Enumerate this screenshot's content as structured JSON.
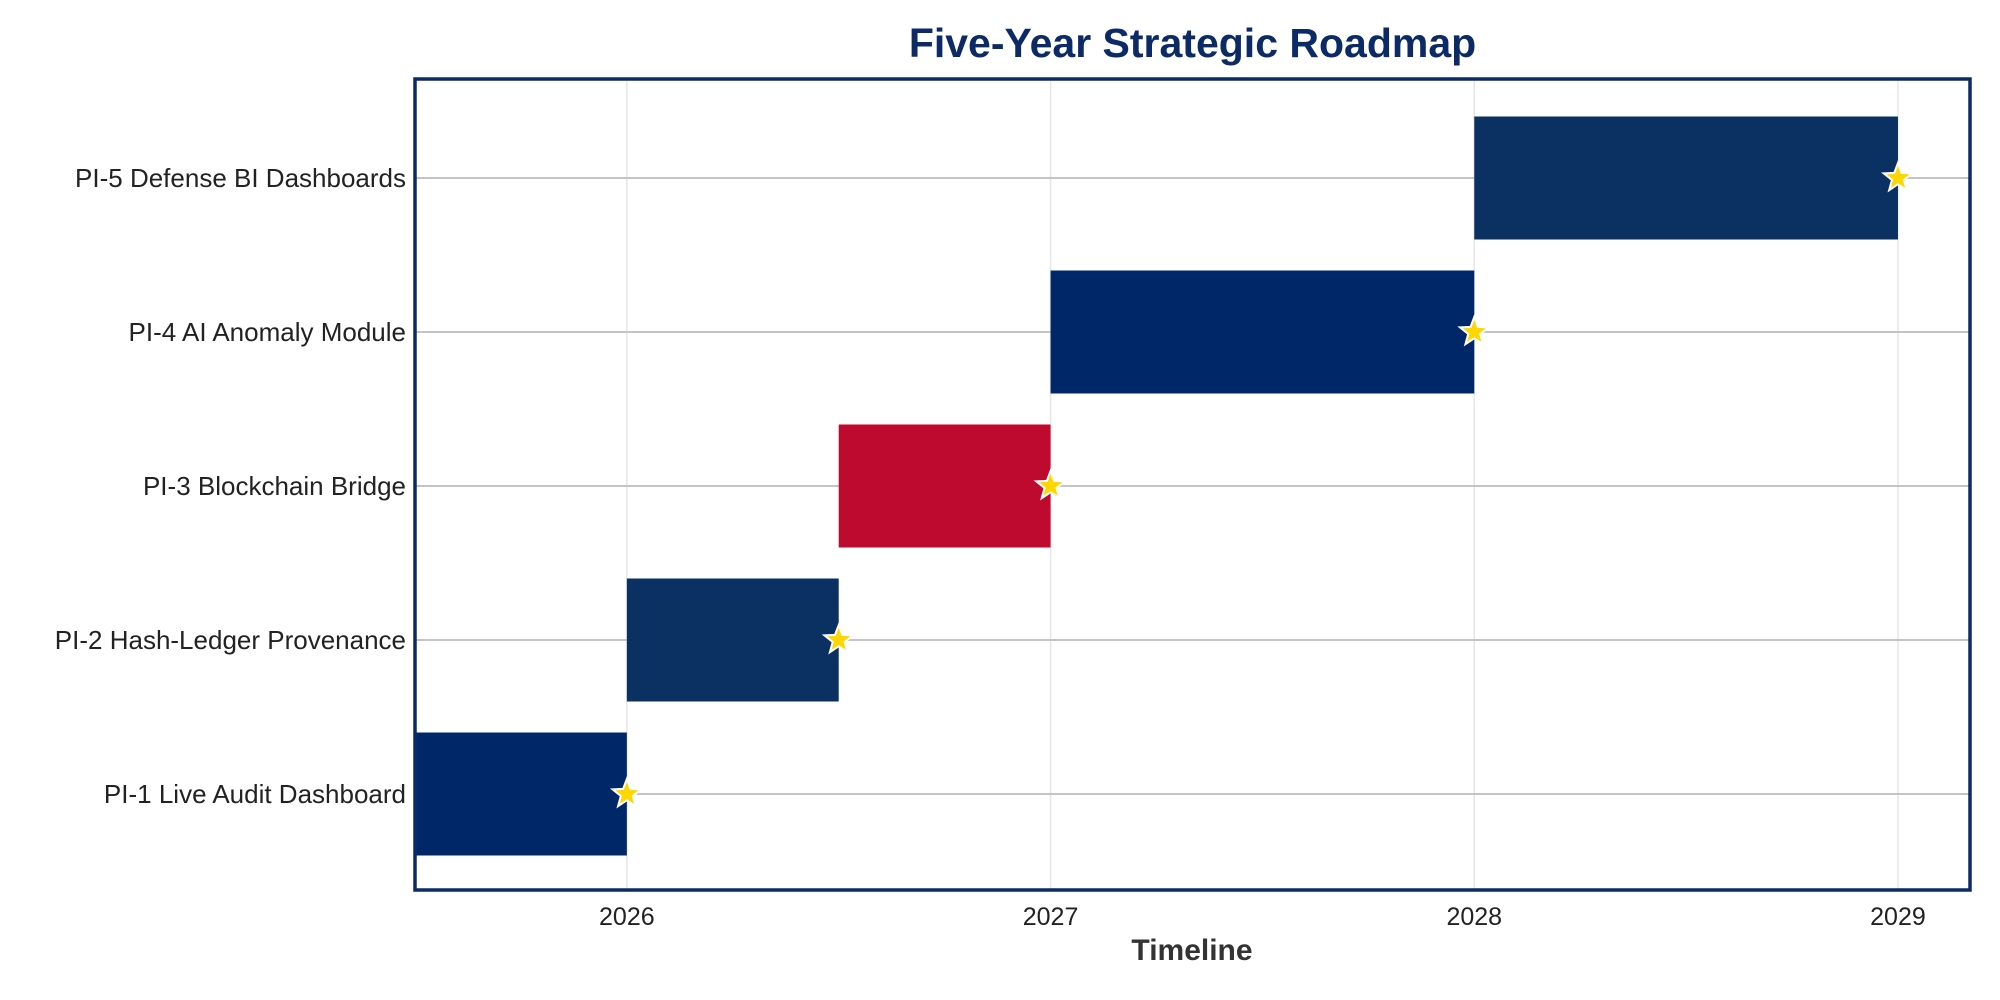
{
  "chart_data": {
    "type": "gantt",
    "title": "Five-Year Strategic Roadmap",
    "xlabel": "Timeline",
    "ylabel": "",
    "x_unit": "year",
    "xlim": [
      2025.5,
      2029.17
    ],
    "x_ticks": [
      "2026",
      "2027",
      "2028",
      "2029"
    ],
    "x_tick_values": [
      2026,
      2027,
      2028,
      2029
    ],
    "grid": true,
    "tasks": [
      {
        "label": "PI-1 Live Audit Dashboard",
        "start": 2025.5,
        "end": 2026.0,
        "milestone": 2026.0,
        "color": "#002868"
      },
      {
        "label": "PI-2 Hash-Ledger Provenance",
        "start": 2026.0,
        "end": 2026.5,
        "milestone": 2026.5,
        "color": "#0b3062"
      },
      {
        "label": "PI-3 Blockchain Bridge",
        "start": 2026.5,
        "end": 2027.0,
        "milestone": 2027.0,
        "color": "#bf0a30"
      },
      {
        "label": "PI-4 AI Anomaly Module",
        "start": 2027.0,
        "end": 2028.0,
        "milestone": 2028.0,
        "color": "#002868"
      },
      {
        "label": "PI-5 Defense BI Dashboards",
        "start": 2028.0,
        "end": 2029.0,
        "milestone": 2029.0,
        "color": "#0b3062"
      }
    ],
    "milestone_marker": {
      "shape": "star",
      "color": "#ffd700"
    },
    "frame_color": "#0b2a66"
  }
}
